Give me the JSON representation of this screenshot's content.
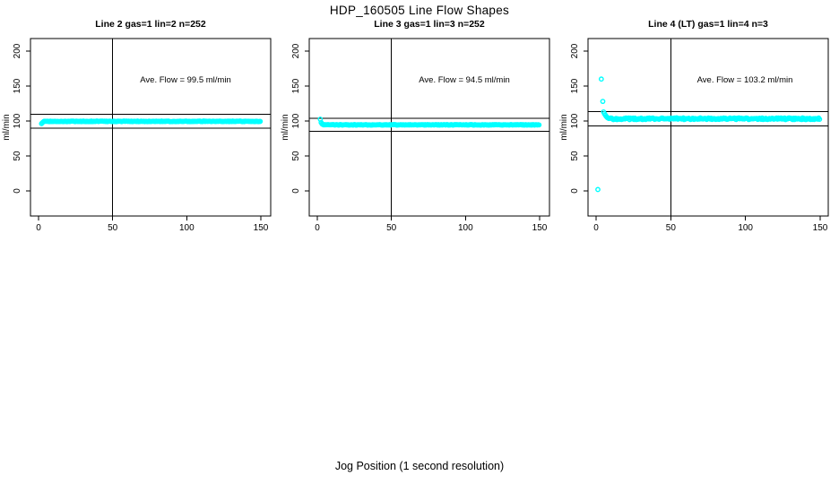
{
  "header": {
    "title": "HDP_160505  Line Flow Shapes"
  },
  "footer": {
    "xlabel": "Jog Position (1 second resolution)"
  },
  "palette": {
    "points": "#00ffff",
    "axis": "#000000",
    "background": "#ffffff"
  },
  "chart_data": [
    {
      "type": "scatter",
      "title": "Line 2 gas=1 lin=2 n=252",
      "ylabel": "ml/min",
      "annotation": "Ave. Flow =  99.5  ml/min",
      "ave_flow_ml_min": 99.5,
      "n_points": 252,
      "xlim": [
        0,
        150
      ],
      "ylim": [
        0,
        200
      ],
      "xticks": [
        "0",
        "50",
        "100",
        "150"
      ],
      "xtick_values": [
        0,
        50,
        100,
        150
      ],
      "yticks": [
        "0",
        "50",
        "100",
        "150",
        "200"
      ],
      "ytick_values": [
        0,
        50,
        100,
        150,
        200
      ],
      "vline_x": 50,
      "hlines": [
        109.5,
        89.6
      ],
      "outlier_points": [],
      "transient_points": [
        [
          2.0,
          96.2
        ],
        [
          2.6,
          97.6
        ],
        [
          3.2,
          98.7
        ]
      ],
      "steady_band": {
        "x_start": 3.8,
        "x_end": 150,
        "step": 0.6,
        "level": 99.5,
        "jitter": 0.45
      }
    },
    {
      "type": "scatter",
      "title": "Line 3 gas=1 lin=3 n=252",
      "ylabel": "ml/min",
      "annotation": "Ave. Flow =  94.5  ml/min",
      "ave_flow_ml_min": 94.5,
      "n_points": 252,
      "xlim": [
        0,
        150
      ],
      "ylim": [
        0,
        200
      ],
      "xticks": [
        "0",
        "50",
        "100",
        "150"
      ],
      "xtick_values": [
        0,
        50,
        100,
        150
      ],
      "yticks": [
        "0",
        "50",
        "100",
        "150",
        "200"
      ],
      "ytick_values": [
        0,
        50,
        100,
        150,
        200
      ],
      "vline_x": 50,
      "hlines": [
        104.0,
        85.1
      ],
      "outlier_points": [],
      "transient_points": [
        [
          2.0,
          102.5
        ],
        [
          2.6,
          97.8
        ],
        [
          3.2,
          95.8
        ],
        [
          3.8,
          95.0
        ]
      ],
      "steady_band": {
        "x_start": 4.4,
        "x_end": 150,
        "step": 0.6,
        "level": 94.5,
        "jitter": 0.4
      }
    },
    {
      "type": "scatter",
      "title": "Line 4 (LT) gas=1 lin=4 n=3",
      "ylabel": "ml/min",
      "annotation": "Ave. Flow =  103.2  ml/min",
      "ave_flow_ml_min": 103.2,
      "n_points": 3,
      "xlim": [
        0,
        150
      ],
      "ylim": [
        0,
        200
      ],
      "xticks": [
        "0",
        "50",
        "100",
        "150"
      ],
      "xtick_values": [
        0,
        50,
        100,
        150
      ],
      "yticks": [
        "0",
        "50",
        "100",
        "150",
        "200"
      ],
      "ytick_values": [
        0,
        50,
        100,
        150,
        200
      ],
      "vline_x": 50,
      "hlines": [
        113.5,
        92.9
      ],
      "outlier_points": [
        [
          1.2,
          2
        ],
        [
          3.5,
          160
        ],
        [
          4.5,
          128
        ]
      ],
      "transient_points": [
        [
          5.0,
          113.0
        ],
        [
          5.6,
          110.5
        ],
        [
          6.2,
          108.4
        ],
        [
          6.8,
          106.6
        ],
        [
          7.4,
          105.2
        ],
        [
          8.0,
          104.2
        ],
        [
          8.6,
          103.6
        ]
      ],
      "steady_band": {
        "x_start": 9.2,
        "x_end": 150,
        "step": 0.6,
        "level": 103.2,
        "jitter": 1.25
      }
    }
  ]
}
